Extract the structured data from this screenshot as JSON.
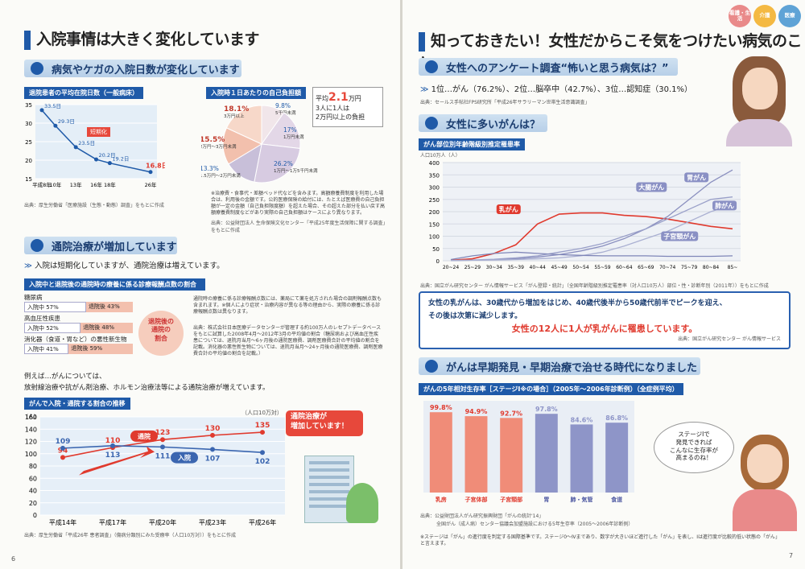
{
  "left": {
    "title": "入院事情は大きく変化しています",
    "sec1": "病気やケガの入院日数が変化しています",
    "chart1": {
      "label": "退院患者の平均在院日数（一般病床）",
      "arrow": "短期化",
      "source": "出典：厚生労働省「医療施設（生態・動態）調査」をもとに作成"
    },
    "chart2": {
      "label": "入院時１日あたりの自己負担額",
      "avg": "平均",
      "avg_value": "2.1",
      "avg_unit": "万円",
      "note": "3人に1人は\n2万円以上の負担",
      "bullets": "※治療費・食事代・差額ベッド代などを含みます。高額療養費制度を利用した場合は、利用後の金額です。公的医療保険の給付には、たとえば医療費の自己負担額が一定の金額（自己負担限度額）を超えた場合、その超えた部分を払い戻す高額療養費制度などがあり実際の自己負担額はケースにより異なります。",
      "source": "出典：公益財団法人 生命保険文化センター「平成25年度生活保障に関する調査」をもとに作成"
    },
    "sec2": "通院治療が増加しています",
    "sub2": "入院は短期化していますが、通院治療は増えています。",
    "chart3": {
      "label": "入院中と退院後の通院時の療養に係る診療報酬点数の割合",
      "rows": [
        {
          "name": "糖尿病",
          "a": "入院中 57%",
          "b": "退院後 43%",
          "p": 57
        },
        {
          "name": "高血圧性疾患",
          "a": "入院中 52%",
          "b": "退院後 48%",
          "p": 52
        },
        {
          "name": "消化器（食道・胃など）の悪性新生物",
          "a": "入院中 41%",
          "b": "退院後 59%",
          "p": 41
        }
      ],
      "bubble": "退院後の\n通院の\n割合",
      "note": "通院時の療養に係る診療報酬点数には、薬局にて薬を処方された場合の調剤報酬点数も含まれます。※個人により症状・治療内容が異なる等の理由から、実際の療養に係る診療報酬点数は異なります。",
      "source": "出典：株式会社日本医療データセンターが管理する約100万人のレセプトデータベースをもとに試算した2008年4月〜2012年3月の平均値の割合（糖尿病および高血圧性疾患については、退院月当月〜6ヶ月後の通院医療費、調剤医療費合計の平均値の割合を記載。消化器の悪性新生物については、退院月当月〜24ヶ月後の通院医療費、調剤医療費合計の平均値の割合を記載。）"
    },
    "example": "例えば…がんについては、\n放射線治療や抗がん剤治療、ホルモン治療法等による通院治療が増えています。",
    "chart4": {
      "label": "がんで入院・通院する割合の推移",
      "unit": "（人口10万対）",
      "y_unit": "（人）",
      "tag_out": "通院",
      "tag_in": "入院",
      "callout": "通院治療が\n増加しています！",
      "source": "出典：厚生労働省「平成26年 患者調査」（傷病分類別にみた受療率（人口10万対））をもとに作成"
    },
    "page_no": "6"
  },
  "right": {
    "badges": [
      "看護・生活",
      "介護",
      "医療"
    ],
    "title": "知っておきたい！女性だからこそ気をつけたい病気のこと",
    "sec1": "女性へのアンケート調査“怖いと思う病気は？”",
    "survey": "1位…がん（76.2%）、2位…脳卒中（42.7%）、3位…認知症（30.1%）",
    "survey_src": "出典：セールス手帖社FPS研究所「平成26年サラリーマン世帯生活意識調査」",
    "sec2": "女性に多いがんは？",
    "chart5": {
      "label": "がん部位別年齢階級別推定罹患率",
      "y_unit": "人口10万人（人）",
      "source": "出典：国立がん研究センター がん情報サービス「がん登録・統計」（全国年齢階級別推定罹患率（対人口10万人）部位・性・診断年別（2011年））をもとに作成"
    },
    "box": {
      "line1": "女性の乳がんは、30歳代から増加をはじめ、40歳代後半から50歳代前半でピークを迎え、",
      "line2": "その後は次第に減少します。",
      "line3": "女性の12人に1人が乳がんに罹患しています。",
      "src": "出典：国立がん研究センター がん情報サービス"
    },
    "sec3": "がんは早期発見・早期治療で治せる時代になりました",
    "chart6": {
      "label": "がんの5年相対生存率［ステージⅠ※の場合］（2005年〜2006年診断例）（全症例平均）",
      "source1": "出典：公益財団法人がん研究振興財団「がんの統計'14」",
      "source2": "全国がん（成人病）センター協議会加盟施設における5年生存率（2005〜2006年診断例）",
      "note": "※ステージは「がん」の進行度を判定する国際基準です。ステージ0〜Ⅳまであり、数字が大きいほど進行した「がん」を表し、Ⅰは進行度が比較的低い状態の「がん」と言えます。"
    },
    "speech": "ステージIで\n発見できれば\nこんなに生存率が\n高まるのね！",
    "page_no": "7"
  },
  "chart_data": [
    {
      "type": "line",
      "title": "退院患者の平均在院日数（一般病床）",
      "x": [
        "平成8年",
        "10年",
        "13年",
        "16年",
        "18年",
        "26年"
      ],
      "series": [
        {
          "values": [
            33.5,
            29.3,
            23.5,
            20.2,
            19.2,
            16.8
          ]
        }
      ],
      "labels": [
        "33.5日",
        "29.3日",
        "23.5日",
        "20.2日",
        "19.2日",
        "16.8日"
      ],
      "ylim": [
        15,
        35
      ],
      "yticks": [
        15,
        20,
        25,
        30,
        35
      ]
    },
    {
      "type": "pie",
      "title": "入院時１日あたりの自己負担額",
      "slices": [
        {
          "name": "5千円未満",
          "value": 9.8
        },
        {
          "name": "1万円未満",
          "value": 17.0
        },
        {
          "name": "1万円〜1万5千円未満",
          "value": 26.2
        },
        {
          "name": "1.5万円〜2万円未満",
          "value": 13.3
        },
        {
          "name": "2万円〜3万円未満",
          "value": 15.5
        },
        {
          "name": "3万円以上",
          "value": 18.1
        }
      ]
    },
    {
      "type": "line",
      "title": "がんで入院・通院する割合の推移",
      "x": [
        "平成14年",
        "平成17年",
        "平成20年",
        "平成23年",
        "平成26年"
      ],
      "series": [
        {
          "name": "通院",
          "values": [
            94,
            110,
            123,
            130,
            135
          ]
        },
        {
          "name": "入院",
          "values": [
            109,
            113,
            111,
            107,
            102
          ]
        }
      ],
      "ylim": [
        0,
        160
      ],
      "yticks": [
        0,
        20,
        40,
        60,
        80,
        100,
        120,
        140,
        160
      ]
    },
    {
      "type": "line",
      "title": "がん部位別年齢階級別推定罹患率",
      "x": [
        "20~24",
        "25~29",
        "30~34",
        "35~39",
        "40~44",
        "45~49",
        "50~54",
        "55~59",
        "60~64",
        "65~69",
        "70~74",
        "75~79",
        "80~84",
        "85~"
      ],
      "series": [
        {
          "name": "乳がん",
          "values": [
            2,
            8,
            30,
            65,
            150,
            190,
            195,
            195,
            185,
            180,
            170,
            155,
            140,
            130
          ]
        },
        {
          "name": "胃がん",
          "values": [
            1,
            2,
            4,
            8,
            15,
            25,
            40,
            60,
            90,
            130,
            180,
            250,
            320,
            370
          ]
        },
        {
          "name": "大腸がん",
          "values": [
            1,
            3,
            6,
            12,
            20,
            35,
            50,
            70,
            100,
            130,
            170,
            210,
            250,
            260
          ]
        },
        {
          "name": "肺がん",
          "values": [
            1,
            2,
            3,
            5,
            8,
            12,
            20,
            35,
            60,
            90,
            120,
            160,
            200,
            230
          ]
        },
        {
          "name": "子宮頸がん",
          "values": [
            5,
            20,
            30,
            35,
            30,
            25,
            22,
            20,
            20,
            20,
            18,
            18,
            18,
            20
          ]
        }
      ],
      "ylim": [
        0,
        400
      ],
      "yticks": [
        0,
        50,
        100,
        150,
        200,
        250,
        300,
        350,
        400
      ]
    },
    {
      "type": "bar",
      "title": "がんの5年相対生存率［ステージⅠ※の場合］",
      "categories": [
        "乳房",
        "子宮体部",
        "子宮頸部",
        "胃",
        "肺・気管",
        "食道"
      ],
      "values": [
        99.8,
        94.9,
        92.7,
        97.8,
        84.6,
        86.8
      ],
      "labels": [
        "99.8%",
        "94.9%",
        "92.7%",
        "97.8%",
        "84.6%",
        "86.8%"
      ],
      "ylim": [
        0,
        100
      ]
    }
  ]
}
